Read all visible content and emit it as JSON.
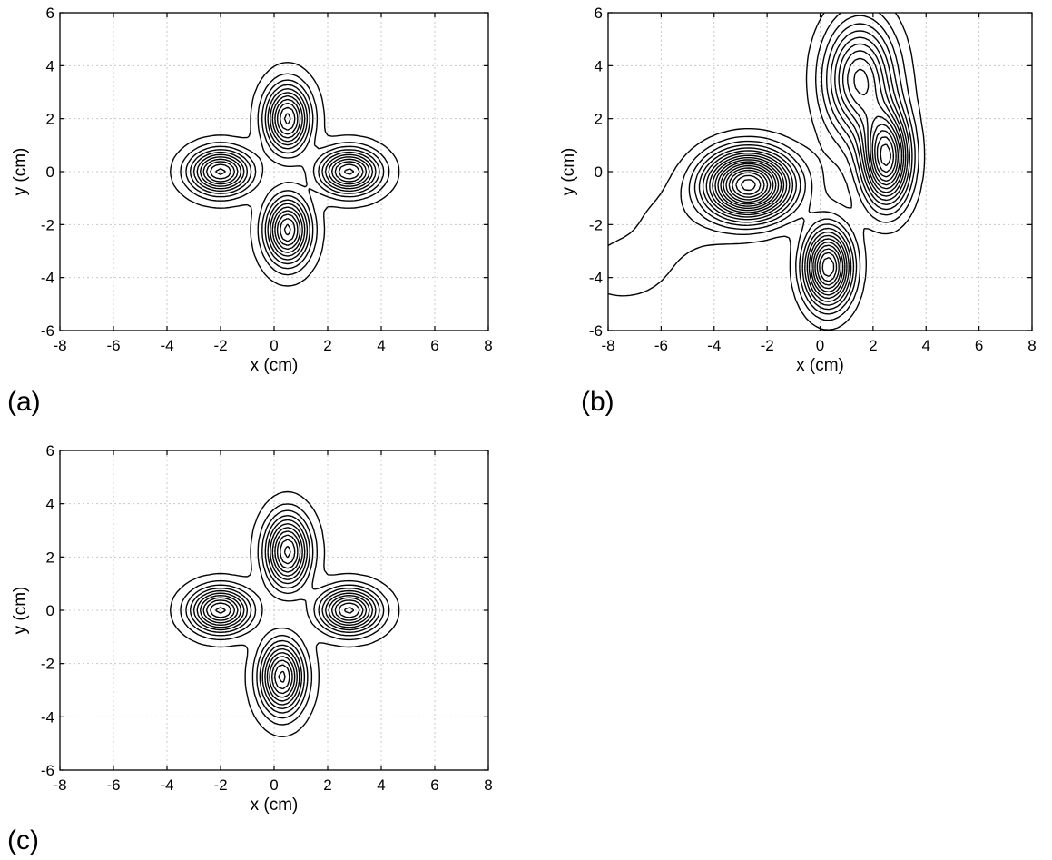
{
  "chart_data": [
    {
      "panel_label": "(a)",
      "type": "contour",
      "xlabel": "x (cm)",
      "ylabel": "y (cm)",
      "xlim": [
        -8,
        8
      ],
      "ylim": [
        -6,
        6
      ],
      "xticks": [
        -8,
        -6,
        -4,
        -2,
        0,
        2,
        4,
        6,
        8
      ],
      "yticks": [
        -6,
        -4,
        -2,
        0,
        2,
        4,
        6
      ],
      "grid": true,
      "contour_levels": 11,
      "sources": [
        {
          "x": -2.0,
          "y": 0.0,
          "sx": 0.75,
          "sy": 0.55,
          "amp": 1.0
        },
        {
          "x": 2.8,
          "y": 0.0,
          "sx": 0.75,
          "sy": 0.55,
          "amp": 1.0
        },
        {
          "x": 0.5,
          "y": 2.0,
          "sx": 0.55,
          "sy": 0.85,
          "amp": 1.0
        },
        {
          "x": 0.5,
          "y": -2.2,
          "sx": 0.55,
          "sy": 0.85,
          "amp": 1.0
        }
      ],
      "background": []
    },
    {
      "panel_label": "(b)",
      "type": "contour",
      "xlabel": "x (cm)",
      "ylabel": "y (cm)",
      "xlim": [
        -8,
        8
      ],
      "ylim": [
        -6,
        6
      ],
      "xticks": [
        -8,
        -6,
        -4,
        -2,
        0,
        2,
        4,
        6,
        8
      ],
      "yticks": [
        -6,
        -4,
        -2,
        0,
        2,
        4,
        6
      ],
      "grid": true,
      "contour_levels": 18,
      "sources": [
        {
          "x": -2.7,
          "y": -0.5,
          "sx": 1.1,
          "sy": 0.85,
          "amp": 1.0
        },
        {
          "x": 2.5,
          "y": 0.5,
          "sx": 0.6,
          "sy": 1.2,
          "amp": 0.75
        },
        {
          "x": 0.3,
          "y": -3.6,
          "sx": 0.6,
          "sy": 1.0,
          "amp": 0.75
        },
        {
          "x": 1.5,
          "y": 3.5,
          "sx": 0.9,
          "sy": 1.5,
          "amp": 0.55
        }
      ],
      "background": [
        {
          "x": 6.8,
          "y": -2.0,
          "sx": 0.7,
          "sy": 0.6,
          "amp": -0.08
        },
        {
          "x": -7.5,
          "y": -3.8,
          "sx": 1.2,
          "sy": 0.8,
          "amp": 0.08
        },
        {
          "x": -5.5,
          "y": -2.0,
          "sx": 1.5,
          "sy": 1.2,
          "amp": 0.06
        }
      ]
    },
    {
      "panel_label": "(c)",
      "type": "contour",
      "xlabel": "x (cm)",
      "ylabel": "y (cm)",
      "xlim": [
        -8,
        8
      ],
      "ylim": [
        -6,
        6
      ],
      "xticks": [
        -8,
        -6,
        -4,
        -2,
        0,
        2,
        4,
        6,
        8
      ],
      "yticks": [
        -6,
        -4,
        -2,
        0,
        2,
        4,
        6
      ],
      "grid": true,
      "contour_levels": 11,
      "sources": [
        {
          "x": -2.0,
          "y": 0.0,
          "sx": 0.75,
          "sy": 0.55,
          "amp": 1.0
        },
        {
          "x": 2.8,
          "y": 0.0,
          "sx": 0.75,
          "sy": 0.55,
          "amp": 1.0
        },
        {
          "x": 0.5,
          "y": 2.2,
          "sx": 0.55,
          "sy": 0.9,
          "amp": 1.0
        },
        {
          "x": 0.3,
          "y": -2.5,
          "sx": 0.55,
          "sy": 0.9,
          "amp": 1.0
        }
      ],
      "background": []
    }
  ]
}
